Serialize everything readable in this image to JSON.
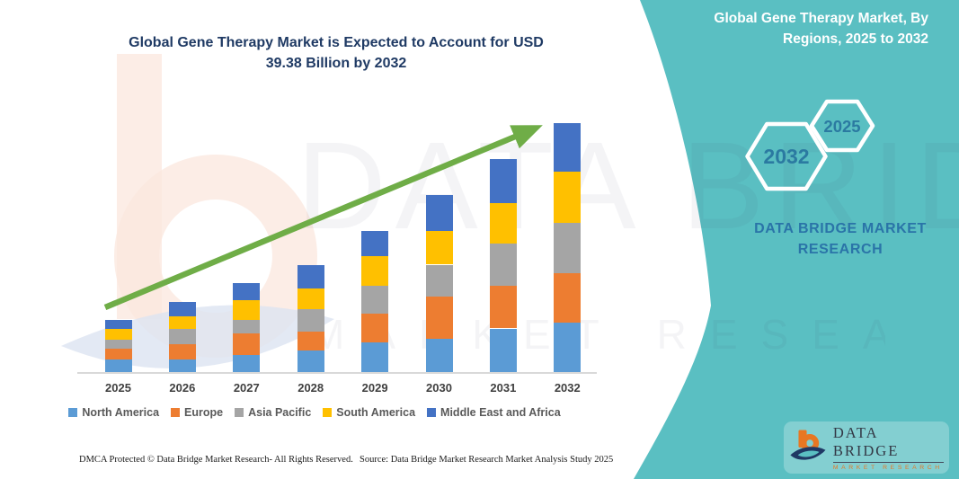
{
  "header": {
    "left_title_line1": "Global Gene Therapy Market is Expected to Account for USD",
    "left_title_line2": "39.38 Billion by 2032",
    "right_title_line1": "Global Gene Therapy Market, By",
    "right_title_line2": "Regions, 2025 to 2032"
  },
  "side_panel": {
    "hexagon_large_label": "2032",
    "hexagon_small_label": "2025",
    "brand_line1": "DATA BRIDGE MARKET",
    "brand_line2": "RESEARCH"
  },
  "watermark": {
    "line1": "DATA BRIDGE",
    "line2": "MARKET RESEARCH"
  },
  "chart_data": {
    "type": "bar",
    "stacked": true,
    "title": "Global Gene Therapy Market is Expected to Account for USD 39.38 Billion by 2032",
    "subtitle": "Global Gene Therapy Market, By Regions, 2025 to 2032",
    "unit": "USD Billion",
    "categories": [
      "2025",
      "2026",
      "2027",
      "2028",
      "2029",
      "2030",
      "2031",
      "2032"
    ],
    "series": [
      {
        "name": "North America",
        "color": "#5B9BD5",
        "values": [
          2.0,
          2.0,
          2.7,
          3.4,
          4.7,
          5.3,
          6.9,
          7.8
        ]
      },
      {
        "name": "Europe",
        "color": "#ED7D31",
        "values": [
          1.7,
          2.4,
          3.4,
          3.0,
          4.6,
          6.6,
          6.8,
          7.9
        ]
      },
      {
        "name": "Asia Pacific",
        "color": "#A5A5A5",
        "values": [
          1.4,
          2.4,
          2.2,
          3.6,
          4.3,
          5.1,
          6.7,
          7.9
        ]
      },
      {
        "name": "South America",
        "color": "#FFC000",
        "values": [
          1.7,
          2.1,
          3.1,
          3.2,
          4.8,
          5.3,
          6.4,
          8.1
        ]
      },
      {
        "name": "Middle East and Africa",
        "color": "#4472C4",
        "values": [
          1.5,
          2.2,
          2.7,
          3.7,
          4.0,
          5.7,
          6.9,
          7.68
        ]
      }
    ],
    "totals_estimated": [
      8.3,
      11.1,
      14.1,
      16.9,
      22.4,
      28.0,
      33.7,
      39.38
    ],
    "ylim": [
      0,
      42
    ],
    "gridlines": false,
    "legend_position": "bottom",
    "annotations": [
      "green upward trend arrow from 2025 bar to 2032 bar"
    ]
  },
  "footer": {
    "dmca_text": "DMCA Protected © Data Bridge Market Research-  All Rights Reserved.",
    "source_text": "Source: Data Bridge Market Research  Market Analysis Study 2025",
    "logo_title": "DATA BRIDGE",
    "logo_subtitle": "MARKET RESEARCH"
  },
  "colors": {
    "panel_teal": "#5ABFC2",
    "title_navy": "#1F3A64",
    "arrow_green": "#6FAD47",
    "axis_gray": "#D9D9D9",
    "legend_text": "#595959",
    "hexagon_text": "#2B7AA1",
    "logo_orange": "#E87722",
    "logo_navy": "#1F3864"
  }
}
